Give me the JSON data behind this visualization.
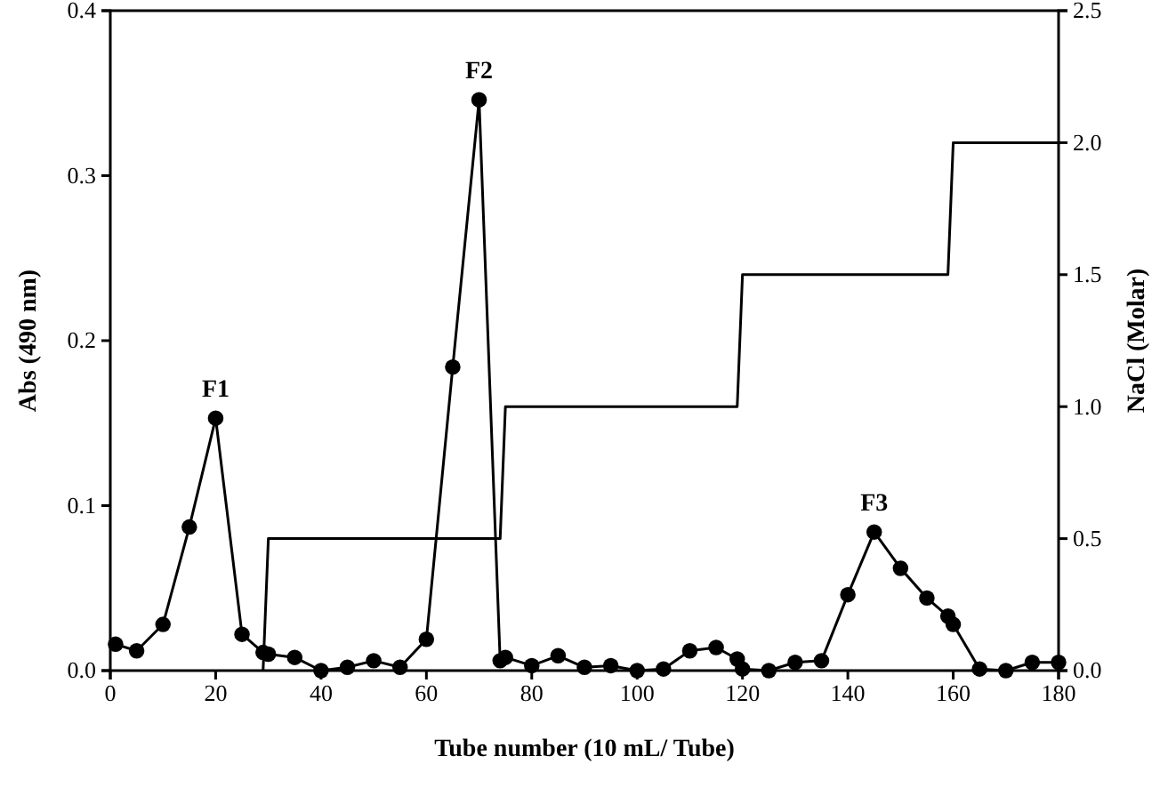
{
  "chart_data": {
    "type": "line",
    "xlabel": "Tube number (10 mL/ Tube)",
    "ylabel": "Abs (490 nm)",
    "y2label": "NaCl (Molar)",
    "xlim": [
      0,
      180
    ],
    "xticks": [
      0,
      20,
      40,
      60,
      80,
      100,
      120,
      140,
      160,
      180
    ],
    "ylim": [
      0,
      0.4
    ],
    "yticks": [
      {
        "value": 0,
        "label": "0.0"
      },
      0.1,
      0.2,
      0.3,
      0.4
    ],
    "y2lim": [
      0,
      2.5
    ],
    "y2ticks": [
      {
        "value": 0,
        "label": "0.0"
      },
      0.5,
      {
        "value": 1,
        "label": "1.0"
      },
      1.5,
      {
        "value": 2,
        "label": "2.0"
      },
      2.5
    ],
    "series": [
      {
        "color": "#000000",
        "marker": "circle",
        "x": [
          1,
          5,
          10,
          15,
          20,
          25,
          29,
          30,
          35,
          40,
          45,
          50,
          55,
          60,
          65,
          70,
          74,
          75,
          80,
          85,
          90,
          95,
          100,
          105,
          110,
          115,
          119,
          120,
          125,
          130,
          135,
          140,
          145,
          150,
          155,
          159,
          160,
          165,
          170,
          175,
          180
        ],
        "values": [
          0.016,
          0.012,
          0.028,
          0.087,
          0.153,
          0.022,
          0.011,
          0.01,
          0.008,
          0.0,
          0.002,
          0.006,
          0.002,
          0.019,
          0.184,
          0.346,
          0.006,
          0.008,
          0.003,
          0.009,
          0.002,
          0.003,
          0.0,
          0.001,
          0.012,
          0.014,
          0.007,
          0.001,
          0.0,
          0.005,
          0.006,
          0.046,
          0.084,
          0.062,
          0.044,
          0.033,
          0.028,
          0.001,
          0.0,
          0.005,
          0.005
        ]
      },
      {
        "color": "#000000",
        "marker": "none",
        "axis": "y2",
        "x": [
          29,
          30,
          74,
          75,
          119,
          120,
          159,
          160,
          180
        ],
        "values": [
          0,
          0.5,
          0.5,
          1,
          1,
          1.5,
          1.5,
          2,
          2
        ]
      }
    ],
    "annotations": [
      {
        "text": "F1",
        "x": 20,
        "y": 0.153
      },
      {
        "text": "F2",
        "x": 70,
        "y": 0.346
      },
      {
        "text": "F3",
        "x": 145,
        "y": 0.084
      }
    ]
  }
}
